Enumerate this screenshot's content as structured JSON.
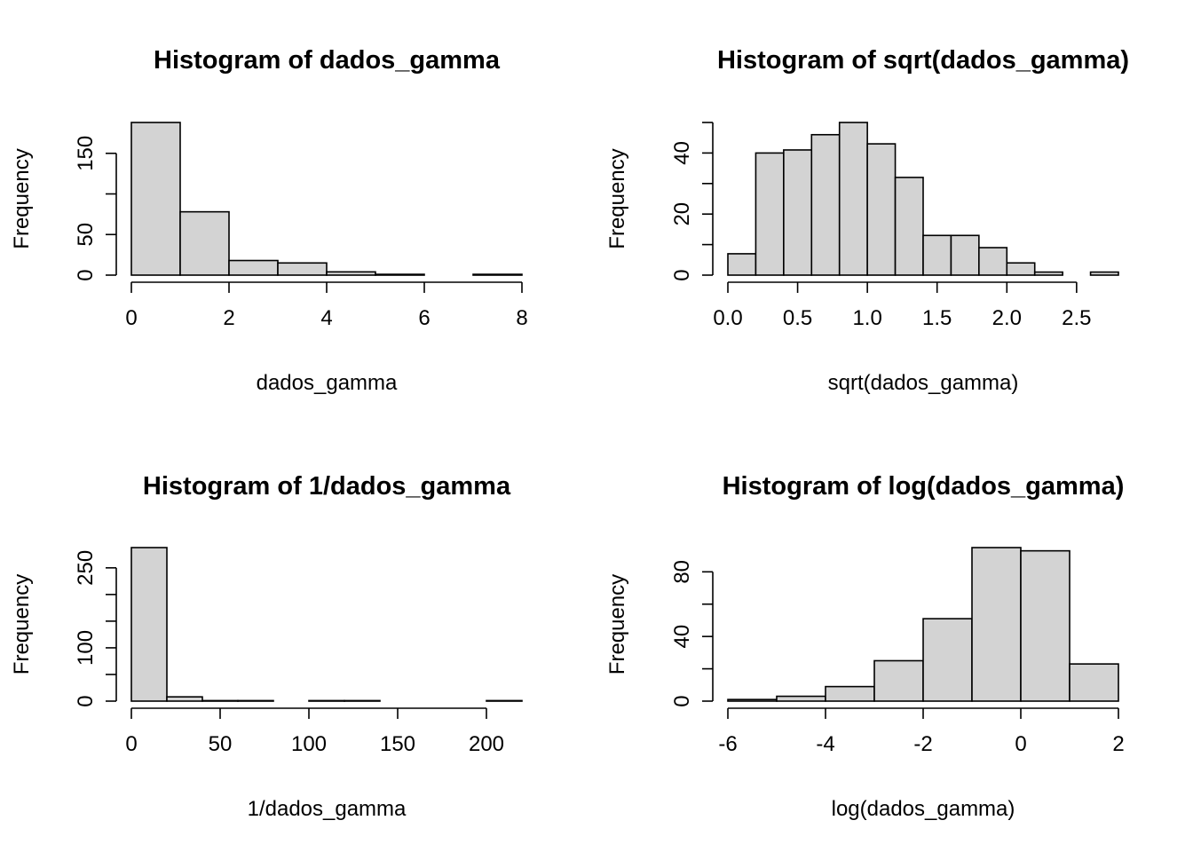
{
  "colors": {
    "bar_fill": "#d3d3d3",
    "bar_stroke": "#000000",
    "background": "#ffffff"
  },
  "chart_data": [
    {
      "type": "bar",
      "title": "Histogram of dados_gamma",
      "xlabel": "dados_gamma",
      "ylabel": "Frequency",
      "breaks": [
        0,
        1,
        2,
        3,
        4,
        5,
        6,
        7,
        8
      ],
      "counts": [
        188,
        78,
        18,
        15,
        4,
        1,
        0,
        1
      ],
      "xticks": [
        0,
        2,
        4,
        6,
        8
      ],
      "xtick_labels": [
        "0",
        "2",
        "4",
        "6",
        "8"
      ],
      "yticks": [
        0,
        50,
        100,
        150
      ],
      "ytick_labels": [
        "0",
        "50",
        "",
        "150"
      ],
      "xlim": [
        0,
        8
      ],
      "ylim": [
        0,
        188
      ]
    },
    {
      "type": "bar",
      "title": "Histogram of sqrt(dados_gamma)",
      "xlabel": "sqrt(dados_gamma)",
      "ylabel": "Frequency",
      "breaks": [
        0,
        0.2,
        0.4,
        0.6,
        0.8,
        1.0,
        1.2,
        1.4,
        1.6,
        1.8,
        2.0,
        2.2,
        2.4,
        2.6,
        2.8
      ],
      "counts": [
        7,
        40,
        41,
        46,
        50,
        43,
        32,
        13,
        13,
        9,
        4,
        1,
        0,
        1
      ],
      "xticks": [
        0,
        0.5,
        1.0,
        1.5,
        2.0,
        2.5
      ],
      "xtick_labels": [
        "0.0",
        "0.5",
        "1.0",
        "1.5",
        "2.0",
        "2.5"
      ],
      "yticks": [
        0,
        10,
        20,
        30,
        40,
        50
      ],
      "ytick_labels": [
        "0",
        "",
        "20",
        "",
        "40",
        ""
      ],
      "xlim": [
        0,
        2.8
      ],
      "ylim": [
        0,
        50
      ]
    },
    {
      "type": "bar",
      "title": "Histogram of 1/dados_gamma",
      "xlabel": "1/dados_gamma",
      "ylabel": "Frequency",
      "breaks": [
        0,
        20,
        40,
        60,
        80,
        100,
        120,
        140,
        160,
        180,
        200,
        220
      ],
      "counts": [
        288,
        8,
        1,
        1,
        0,
        1,
        1,
        0,
        0,
        0,
        1
      ],
      "xticks": [
        0,
        50,
        100,
        150,
        200
      ],
      "xtick_labels": [
        "0",
        "50",
        "100",
        "150",
        "200"
      ],
      "yticks": [
        0,
        50,
        100,
        150,
        200,
        250
      ],
      "ytick_labels": [
        "0",
        "",
        "100",
        "",
        "",
        "250"
      ],
      "xlim": [
        0,
        220
      ],
      "ylim": [
        0,
        288
      ]
    },
    {
      "type": "bar",
      "title": "Histogram of log(dados_gamma)",
      "xlabel": "log(dados_gamma)",
      "ylabel": "Frequency",
      "breaks": [
        -6,
        -5,
        -4,
        -3,
        -2,
        -1,
        0,
        1,
        2
      ],
      "counts": [
        1,
        3,
        9,
        25,
        51,
        95,
        93,
        23
      ],
      "xticks": [
        -6,
        -4,
        -2,
        0,
        2
      ],
      "xtick_labels": [
        "-6",
        "-4",
        "-2",
        "0",
        "2"
      ],
      "yticks": [
        0,
        20,
        40,
        60,
        80
      ],
      "ytick_labels": [
        "0",
        "",
        "40",
        "",
        "80"
      ],
      "xlim": [
        -6,
        2
      ],
      "ylim": [
        0,
        95
      ]
    }
  ]
}
